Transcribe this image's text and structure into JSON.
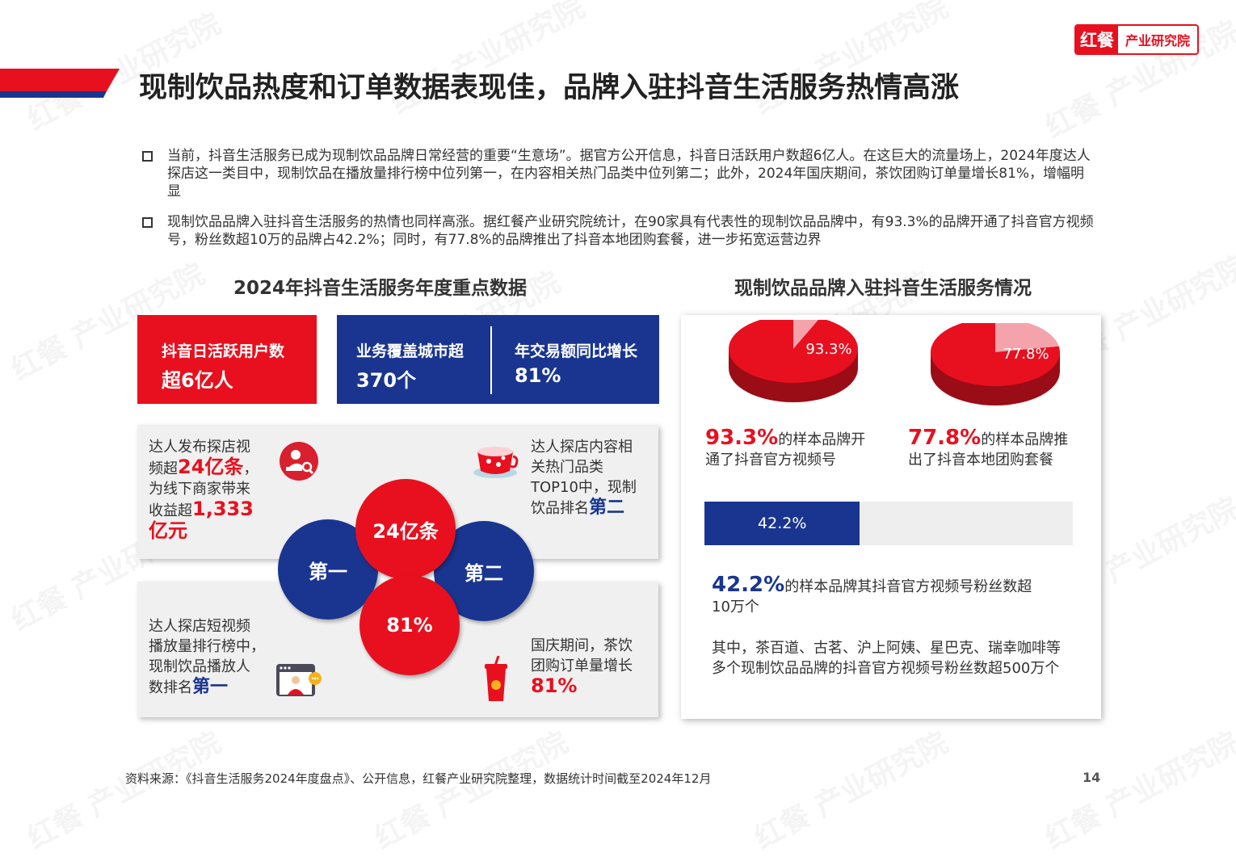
{
  "header": {
    "logo_mark": "红餐",
    "logo_text": "产业研究院",
    "title": "现制饮品热度和订单数据表现佳，品牌入驻抖音生活服务热情高涨"
  },
  "bullets": [
    "当前，抖音生活服务已成为现制饮品品牌日常经营的重要“生意场”。据官方公开信息，抖音日活跃用户数超6亿人。在这巨大的流量场上，2024年度达人探店这一类目中，现制饮品在播放量排行榜中位列第一，在内容相关热门品类中位列第二；此外，2024年国庆期间，茶饮团购订单量增长81%，增幅明显",
    "现制饮品品牌入驻抖音生活服务的热情也同样高涨。据红餐产业研究院统计，在90家具有代表性的现制饮品品牌中，有93.3%的品牌开通了抖音官方视频号，粉丝数超10万的品牌占42.2%；同时，有77.8%的品牌推出了抖音本地团购套餐，进一步拓宽运营边界"
  ],
  "left": {
    "section_title": "2024年抖音生活服务年度重点数据",
    "stat1": {
      "label": "抖音日活跃用户数",
      "value": "超6亿人"
    },
    "stat2": {
      "label": "业务覆盖城市超",
      "value": "370个"
    },
    "stat3": {
      "label": "年交易额同比增长",
      "value": "81%"
    },
    "card_tl": {
      "t1": "达人发布探店视",
      "t2": "频超",
      "v1": "24亿条",
      "t3": "，",
      "t4": "为线下商家带来",
      "t5": "收益超",
      "v2": "1,333",
      "v3": "亿元"
    },
    "card_tr": {
      "t1": "达人探店内容相",
      "t2": "关热门品类",
      "t3": "TOP10中，现制",
      "t4": "饮品排名",
      "v1": "第二"
    },
    "card_bl": {
      "t1": "达人探店短视频",
      "t2": "播放量排行榜中，",
      "t3": "现制饮品播放人",
      "t4": "数排名",
      "v1": "第一"
    },
    "card_br": {
      "t1": "国庆期间，茶饮",
      "t2": "团购订单量增长",
      "v1": "81%"
    },
    "circles": {
      "top": "24亿条",
      "left": "第一",
      "right": "第二",
      "bottom": "81%"
    }
  },
  "right": {
    "section_title": "现制饮品品牌入驻抖音生活服务情况",
    "pie1": {
      "label": "93.3%",
      "value": 93.3,
      "desc_value": "93.3%",
      "desc1": "的样本品牌开",
      "desc2": "通了抖音官方视频号"
    },
    "pie2": {
      "label": "77.8%",
      "value": 77.8,
      "desc_value": "77.8%",
      "desc1": "的样本品牌推",
      "desc2": "出了抖音本地团购套餐"
    },
    "bar": {
      "label": "42.2%",
      "value": 42.2
    },
    "bar_desc": {
      "value": "42.2%",
      "t1": "的样本品牌其抖音官方视频号粉丝数超",
      "t2": "10万个"
    },
    "note": "其中，茶百道、古茗、沪上阿姨、星巴克、瑞幸咖啡等多个现制饮品品牌的抖音官方视频号粉丝数超500万个"
  },
  "colors": {
    "red": "#e8101f",
    "navy": "#1a3590",
    "pie_light": "#f5a3ab",
    "bar_bg": "#eeeeee"
  },
  "footer": {
    "source": "资料来源：《抖音生活服务2024年度盘点》、公开信息，红餐产业研究院整理，数据统计时间截至2024年12月",
    "page": "14"
  },
  "watermark": "红餐 产业研究院"
}
